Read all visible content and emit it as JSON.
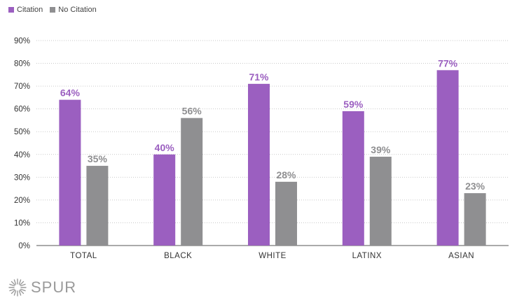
{
  "legend": {
    "items": [
      {
        "label": "Citation",
        "color": "#9b5fc0"
      },
      {
        "label": "No Citation",
        "color": "#8f8f91"
      }
    ]
  },
  "logo": {
    "text": "SPUR",
    "icon": "sunburst-icon"
  },
  "chart_data": {
    "type": "bar",
    "categories": [
      "TOTAL",
      "BLACK",
      "WHITE",
      "LATINX",
      "ASIAN"
    ],
    "series": [
      {
        "name": "Citation",
        "values": [
          64,
          40,
          71,
          59,
          77
        ],
        "labels": [
          "64%",
          "40%",
          "71%",
          "59%",
          "77%"
        ],
        "color": "#9b5fc0"
      },
      {
        "name": "No Citation",
        "values": [
          35,
          56,
          28,
          39,
          23
        ],
        "labels": [
          "35%",
          "56%",
          "28%",
          "39%",
          "23%"
        ],
        "color": "#8f8f91"
      }
    ],
    "ylim": [
      0,
      90
    ],
    "yticks": [
      0,
      10,
      20,
      30,
      40,
      50,
      60,
      70,
      80,
      90
    ],
    "ytick_labels": [
      "0%",
      "10%",
      "20%",
      "30%",
      "40%",
      "50%",
      "60%",
      "70%",
      "80%",
      "90%"
    ],
    "grid": true,
    "legend_position": "top-left"
  }
}
